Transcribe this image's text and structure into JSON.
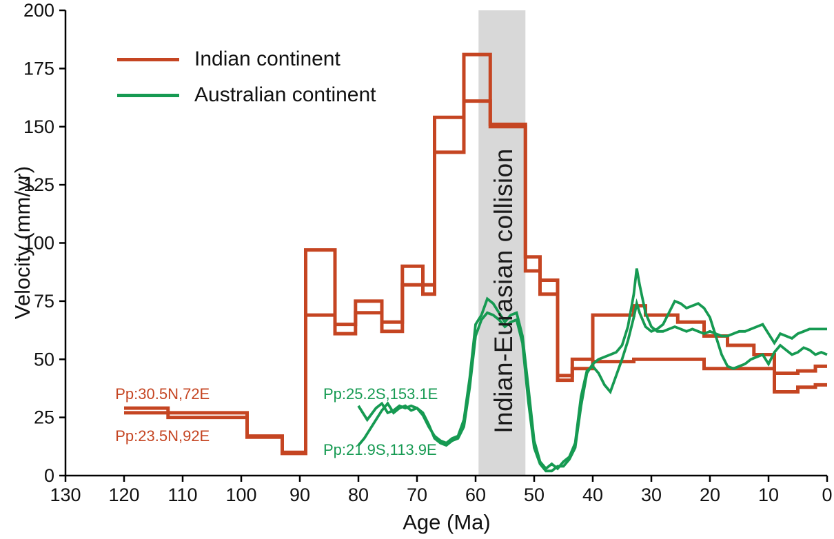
{
  "chart_data": {
    "type": "line",
    "title": "",
    "xlabel": "Age (Ma)",
    "ylabel": "Velocity (mm/yr)",
    "xlim": [
      130,
      0
    ],
    "ylim": [
      0,
      200
    ],
    "x_axis_reversed": true,
    "grid": false,
    "x_ticks": [
      130,
      120,
      110,
      100,
      90,
      80,
      70,
      60,
      50,
      40,
      30,
      20,
      10,
      0
    ],
    "y_ticks": [
      0,
      25,
      50,
      75,
      100,
      125,
      150,
      175,
      200
    ],
    "band": {
      "label": "Indian-Eurasian collision",
      "x_from": 59.5,
      "x_to": 51.5,
      "color": "#d8d8d8"
    },
    "legend": [
      {
        "label": "Indian continent",
        "color": "#c54522"
      },
      {
        "label": "Australian continent",
        "color": "#169a52"
      }
    ],
    "point_labels": [
      {
        "text": "Pp:30.5N,72E",
        "x": 121.5,
        "y": 35,
        "color": "#c54522"
      },
      {
        "text": "Pp:23.5N,92E",
        "x": 121.5,
        "y": 17,
        "color": "#c54522"
      },
      {
        "text": "Pp:25.2S,153.1E",
        "x": 86,
        "y": 35,
        "color": "#169a52"
      },
      {
        "text": "Pp:21.9S,113.9E",
        "x": 86,
        "y": 11,
        "color": "#169a52"
      }
    ],
    "series": [
      {
        "name": "Indian continent Pp:30.5N,72E",
        "color": "#c54522",
        "width": 5,
        "points": [
          [
            120,
            29
          ],
          [
            112.5,
            29
          ],
          [
            112.5,
            27
          ],
          [
            99,
            27
          ],
          [
            99,
            17
          ],
          [
            93,
            17
          ],
          [
            93,
            10
          ],
          [
            89,
            10
          ],
          [
            89,
            97
          ],
          [
            84,
            97
          ],
          [
            84,
            61
          ],
          [
            80.5,
            61
          ],
          [
            80.5,
            75
          ],
          [
            76,
            75
          ],
          [
            76,
            66
          ],
          [
            72.5,
            66
          ],
          [
            72.5,
            90
          ],
          [
            69,
            90
          ],
          [
            69,
            82
          ],
          [
            67,
            82
          ],
          [
            67,
            154
          ],
          [
            62,
            154
          ],
          [
            62,
            181
          ],
          [
            57.5,
            181
          ],
          [
            57.5,
            151
          ],
          [
            51.5,
            151
          ],
          [
            51.5,
            94
          ],
          [
            49,
            94
          ],
          [
            49,
            84
          ],
          [
            46,
            84
          ],
          [
            46,
            41
          ],
          [
            43.5,
            41
          ],
          [
            43.5,
            50
          ],
          [
            40,
            50
          ],
          [
            40,
            69
          ],
          [
            33,
            69
          ],
          [
            33,
            73
          ],
          [
            31,
            73
          ],
          [
            31,
            69
          ],
          [
            25.5,
            69
          ],
          [
            25.5,
            66
          ],
          [
            21,
            66
          ],
          [
            21,
            60
          ],
          [
            17,
            60
          ],
          [
            17,
            56
          ],
          [
            12.5,
            56
          ],
          [
            12.5,
            52
          ],
          [
            9,
            52
          ],
          [
            9,
            44
          ],
          [
            5,
            44
          ],
          [
            5,
            45
          ],
          [
            2,
            45
          ],
          [
            2,
            47
          ],
          [
            0,
            47
          ]
        ]
      },
      {
        "name": "Indian continent Pp:23.5N,92E",
        "color": "#c54522",
        "width": 5,
        "points": [
          [
            120,
            27
          ],
          [
            112.5,
            27
          ],
          [
            112.5,
            25
          ],
          [
            99,
            25
          ],
          [
            99,
            16.5
          ],
          [
            93,
            16.5
          ],
          [
            93,
            9.5
          ],
          [
            89,
            9.5
          ],
          [
            89,
            69
          ],
          [
            84,
            69
          ],
          [
            84,
            65
          ],
          [
            80.5,
            65
          ],
          [
            80.5,
            70
          ],
          [
            76,
            70
          ],
          [
            76,
            62
          ],
          [
            72.5,
            62
          ],
          [
            72.5,
            82
          ],
          [
            69,
            82
          ],
          [
            69,
            78
          ],
          [
            67,
            78
          ],
          [
            67,
            139
          ],
          [
            62,
            139
          ],
          [
            62,
            161
          ],
          [
            57.5,
            161
          ],
          [
            57.5,
            150
          ],
          [
            51.5,
            150
          ],
          [
            51.5,
            88
          ],
          [
            49,
            88
          ],
          [
            49,
            78
          ],
          [
            46,
            78
          ],
          [
            46,
            43
          ],
          [
            43.5,
            43
          ],
          [
            43.5,
            46
          ],
          [
            40,
            46
          ],
          [
            40,
            49
          ],
          [
            33,
            49
          ],
          [
            33,
            50
          ],
          [
            21,
            50
          ],
          [
            21,
            46
          ],
          [
            9,
            46
          ],
          [
            9,
            36
          ],
          [
            5,
            36
          ],
          [
            5,
            38
          ],
          [
            2,
            38
          ],
          [
            2,
            39
          ],
          [
            0,
            39
          ]
        ]
      },
      {
        "name": "Australian continent Pp:25.2S,153.1E",
        "color": "#169a52",
        "width": 3.8,
        "points": [
          [
            80,
            30
          ],
          [
            78.5,
            24
          ],
          [
            77,
            29
          ],
          [
            76,
            31
          ],
          [
            75,
            27
          ],
          [
            74,
            28
          ],
          [
            73,
            30
          ],
          [
            72,
            29
          ],
          [
            71,
            30
          ],
          [
            70,
            29
          ],
          [
            69,
            26
          ],
          [
            68,
            21
          ],
          [
            67,
            17
          ],
          [
            66,
            15
          ],
          [
            65,
            14
          ],
          [
            64,
            16
          ],
          [
            63,
            17
          ],
          [
            62,
            24
          ],
          [
            61,
            42
          ],
          [
            60,
            65
          ],
          [
            59,
            69
          ],
          [
            58,
            76
          ],
          [
            57,
            74
          ],
          [
            56,
            70
          ],
          [
            55,
            66
          ],
          [
            54,
            69
          ],
          [
            53,
            70
          ],
          [
            52,
            60
          ],
          [
            51,
            38
          ],
          [
            50,
            15
          ],
          [
            49,
            6
          ],
          [
            48,
            3
          ],
          [
            47,
            5
          ],
          [
            46,
            3
          ],
          [
            45,
            6
          ],
          [
            44,
            8
          ],
          [
            43,
            14
          ],
          [
            42,
            34
          ],
          [
            41,
            45
          ],
          [
            40,
            47
          ],
          [
            39,
            44
          ],
          [
            38,
            39
          ],
          [
            37,
            36
          ],
          [
            36,
            43
          ],
          [
            35,
            50
          ],
          [
            34,
            58
          ],
          [
            33,
            68
          ],
          [
            32.5,
            74
          ],
          [
            32,
            70
          ],
          [
            31,
            64
          ],
          [
            30,
            62
          ],
          [
            29,
            63
          ],
          [
            28,
            65
          ],
          [
            27,
            70
          ],
          [
            26,
            75
          ],
          [
            25,
            74
          ],
          [
            24,
            72
          ],
          [
            23,
            73
          ],
          [
            22,
            74
          ],
          [
            21,
            72
          ],
          [
            20,
            68
          ],
          [
            19,
            60
          ],
          [
            18,
            52
          ],
          [
            17,
            47
          ],
          [
            16,
            46
          ],
          [
            15,
            47
          ],
          [
            14,
            48
          ],
          [
            13,
            50
          ],
          [
            12,
            51
          ],
          [
            11,
            52
          ],
          [
            10,
            48
          ],
          [
            9,
            53
          ],
          [
            8,
            56
          ],
          [
            7,
            54
          ],
          [
            6,
            52
          ],
          [
            5,
            53
          ],
          [
            4,
            55
          ],
          [
            3,
            54
          ],
          [
            2,
            52
          ],
          [
            1,
            53
          ],
          [
            0,
            52
          ]
        ]
      },
      {
        "name": "Australian continent Pp:21.9S,113.9E",
        "color": "#169a52",
        "width": 3.8,
        "points": [
          [
            80,
            13
          ],
          [
            79,
            16
          ],
          [
            78,
            20
          ],
          [
            77,
            24
          ],
          [
            76,
            28
          ],
          [
            75,
            31
          ],
          [
            74,
            27
          ],
          [
            73,
            29
          ],
          [
            72,
            30
          ],
          [
            71,
            28
          ],
          [
            70,
            29
          ],
          [
            69,
            27
          ],
          [
            68,
            22
          ],
          [
            67,
            16
          ],
          [
            66,
            14
          ],
          [
            65,
            13
          ],
          [
            64,
            15
          ],
          [
            63,
            16
          ],
          [
            62,
            21
          ],
          [
            61,
            38
          ],
          [
            60,
            60
          ],
          [
            59,
            67
          ],
          [
            58,
            70
          ],
          [
            57,
            69
          ],
          [
            56,
            67
          ],
          [
            55,
            64
          ],
          [
            54,
            66
          ],
          [
            53,
            67
          ],
          [
            52,
            57
          ],
          [
            51,
            32
          ],
          [
            50,
            12
          ],
          [
            49,
            5
          ],
          [
            48,
            2
          ],
          [
            47,
            2
          ],
          [
            46,
            4
          ],
          [
            45,
            4
          ],
          [
            44,
            7
          ],
          [
            43,
            12
          ],
          [
            42,
            30
          ],
          [
            41,
            44
          ],
          [
            40,
            48
          ],
          [
            39,
            50
          ],
          [
            38,
            51
          ],
          [
            37,
            52
          ],
          [
            36,
            53
          ],
          [
            35,
            56
          ],
          [
            34,
            64
          ],
          [
            33,
            78
          ],
          [
            32.5,
            89
          ],
          [
            32,
            82
          ],
          [
            31,
            70
          ],
          [
            30,
            64
          ],
          [
            29,
            62
          ],
          [
            28,
            62
          ],
          [
            27,
            63
          ],
          [
            26,
            64
          ],
          [
            25,
            63
          ],
          [
            24,
            62
          ],
          [
            23,
            63
          ],
          [
            22,
            62
          ],
          [
            21,
            61
          ],
          [
            20,
            62
          ],
          [
            19,
            61
          ],
          [
            18,
            60
          ],
          [
            17,
            60
          ],
          [
            16,
            61
          ],
          [
            15,
            62
          ],
          [
            14,
            62
          ],
          [
            13,
            63
          ],
          [
            12,
            64
          ],
          [
            11,
            65
          ],
          [
            10,
            61
          ],
          [
            9,
            57
          ],
          [
            8,
            61
          ],
          [
            7,
            60
          ],
          [
            6,
            59
          ],
          [
            5,
            61
          ],
          [
            4,
            62
          ],
          [
            3,
            63
          ],
          [
            2,
            63
          ],
          [
            1,
            63
          ],
          [
            0,
            63
          ]
        ]
      }
    ]
  }
}
